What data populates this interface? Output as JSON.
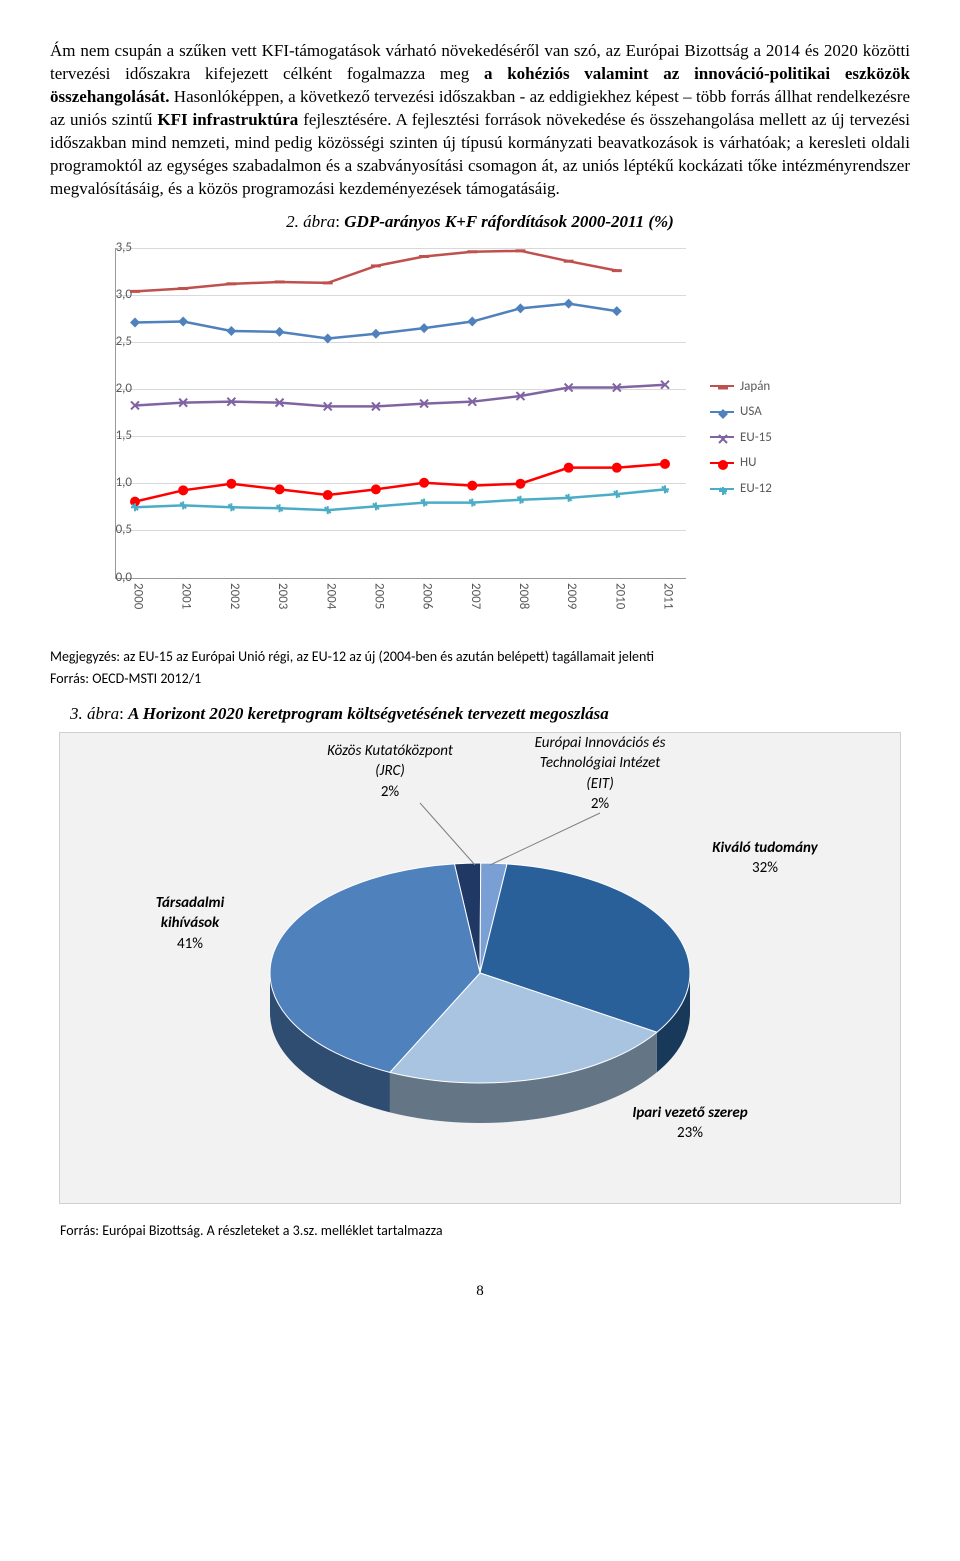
{
  "paragraph": {
    "pre": "Ám nem csupán a szűken vett KFI-támogatások várható növekedéséről van szó, az Európai Bizottság a 2014 és 2020 közötti tervezési időszakra kifejezett célként fogalmazza meg ",
    "bold1": "a kohéziós valamint az innováció-politikai eszközök összehangolását.",
    "mid1": " Hasonlóképpen, a következő tervezési időszakban - az eddigiekhez képest – több forrás állhat rendelkezésre az uniós szintű ",
    "bold2": "KFI infrastruktúra",
    "mid2": " fejlesztésére. A fejlesztési források növekedése és összehangolása mellett az új tervezési időszakban mind nemzeti, mind pedig közösségi szinten új típusú kormányzati beavatkozások is várhatóak; a keresleti oldali programoktól az egységes szabadalmon és a szabványosítási csomagon át, az uniós léptékű kockázati tőke intézményrendszer megvalósításáig, és a közös programozási kezdeményezések támogatásáig."
  },
  "fig2": {
    "num": "2. ábra",
    "title": "GDP-arányos K+F ráfordítások 2000-2011 (%)"
  },
  "line_chart": {
    "ylim": [
      0,
      3.5
    ],
    "yticks": [
      0.0,
      0.5,
      1.0,
      1.5,
      2.0,
      2.5,
      3.0,
      3.5
    ],
    "ytick_labels": [
      "0,0",
      "0,5",
      "1,0",
      "1,5",
      "2,0",
      "2,5",
      "3,0",
      "3,5"
    ],
    "xlabels": [
      "2000",
      "2001",
      "2002",
      "2003",
      "2004",
      "2005",
      "2006",
      "2007",
      "2008",
      "2009",
      "2010",
      "2011"
    ],
    "series": [
      {
        "name": "Japán",
        "color": "#c0504d",
        "marker": "dash",
        "values": [
          3.04,
          3.07,
          3.12,
          3.14,
          3.13,
          3.31,
          3.41,
          3.46,
          3.47,
          3.36,
          3.26,
          null
        ]
      },
      {
        "name": "USA",
        "color": "#4f81bd",
        "marker": "diamond",
        "values": [
          2.71,
          2.72,
          2.62,
          2.61,
          2.54,
          2.59,
          2.65,
          2.72,
          2.86,
          2.91,
          2.83,
          null
        ]
      },
      {
        "name": "EU-15",
        "color": "#8064a2",
        "marker": "x",
        "values": [
          1.83,
          1.86,
          1.87,
          1.86,
          1.82,
          1.82,
          1.85,
          1.87,
          1.93,
          2.02,
          2.02,
          2.05
        ]
      },
      {
        "name": "HU",
        "color": "#ff0000",
        "marker": "circle",
        "values": [
          0.81,
          0.93,
          1.0,
          0.94,
          0.88,
          0.94,
          1.01,
          0.98,
          1.0,
          1.17,
          1.17,
          1.21
        ]
      },
      {
        "name": "EU-12",
        "color": "#4bacc6",
        "marker": "star",
        "values": [
          0.75,
          0.77,
          0.75,
          0.74,
          0.72,
          0.76,
          0.8,
          0.8,
          0.83,
          0.85,
          0.89,
          0.94
        ]
      }
    ]
  },
  "note1": "Megjegyzés: az EU-15 az Európai Unió régi, az EU-12 az új (2004-ben és azután belépett) tagállamait jelenti",
  "note2": "Forrás: OECD-MSTI 2012/1",
  "fig3": {
    "num": "3. ábra",
    "title": "A Horizont 2020 keretprogram költségvetésének tervezett megoszlása"
  },
  "pie": {
    "slices": [
      {
        "label": "Társadalmi kihívások",
        "pct": "41%",
        "value": 41,
        "color": "#4f81bd"
      },
      {
        "label": "Kiváló tudomány",
        "pct": "32%",
        "value": 32,
        "color": "#2a6099"
      },
      {
        "label": "Ipari vezető szerep",
        "pct": "23%",
        "value": 23,
        "color": "#a8c4e0"
      },
      {
        "label": "Közös Kutatóközpont (JRC)",
        "pct": "2%",
        "value": 2,
        "color": "#1f3864"
      },
      {
        "label": "Európai Innovációs és Technológiai Intézet (EIT)",
        "pct": "2%",
        "value": 2,
        "color": "#7a9fd4"
      }
    ],
    "labels": {
      "jrc_l1": "Közös Kutatóközpont",
      "jrc_l2": "(JRC)",
      "jrc_pct": "2%",
      "eit_l1": "Európai Innovációs és",
      "eit_l2": "Technológiai Intézet",
      "eit_l3": "(EIT)",
      "eit_pct": "2%",
      "excellent_l": "Kiváló tudomány",
      "excellent_pct": "32%",
      "industrial_l": "Ipari vezető szerep",
      "industrial_pct": "23%",
      "societal_l1": "Társadalmi",
      "societal_l2": "kihívások",
      "societal_pct": "41%"
    }
  },
  "pie_source": "Forrás: Európai Bizottság. A részleteket a 3.sz. melléklet tartalmazza",
  "page_num": "8"
}
